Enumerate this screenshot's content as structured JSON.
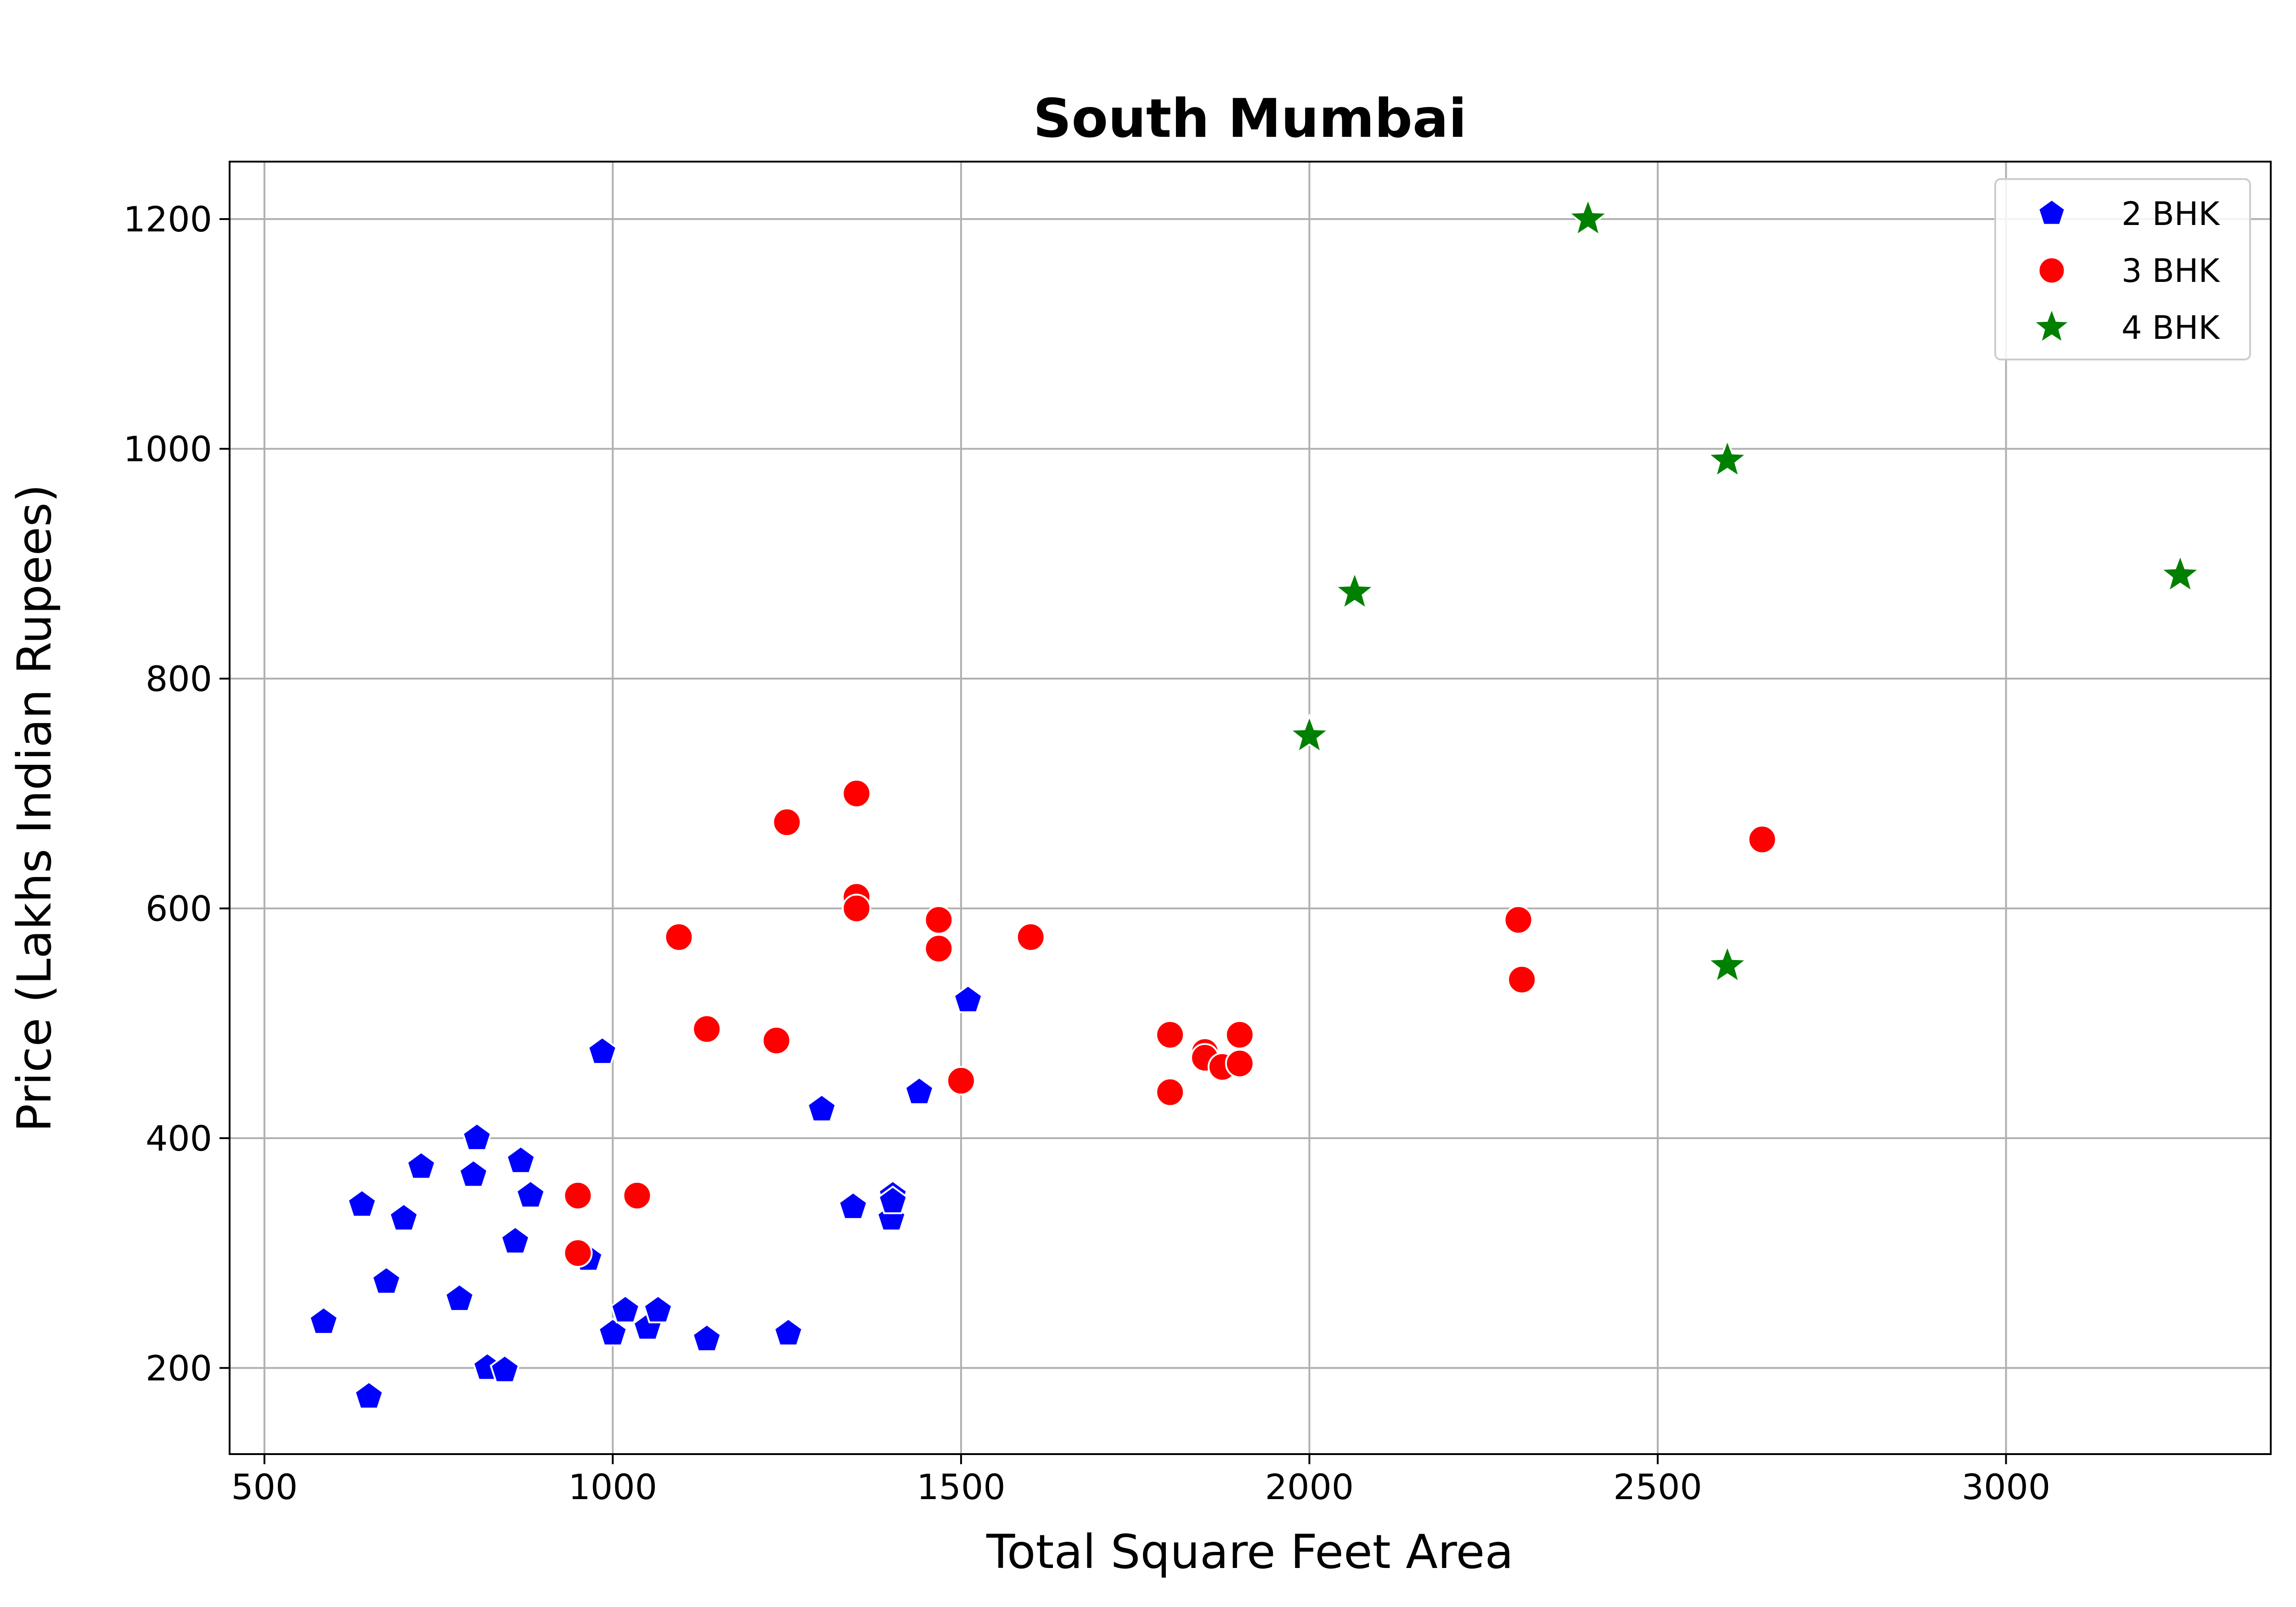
{
  "chart_data": {
    "type": "scatter",
    "title": "South Mumbai",
    "xlabel": "Total Square Feet Area",
    "ylabel": "Price (Lakhs Indian Rupees)",
    "xlim": [
      450,
      3380
    ],
    "ylim": [
      125,
      1250
    ],
    "xticks": [
      500,
      1000,
      1500,
      2000,
      2500,
      3000
    ],
    "yticks": [
      200,
      400,
      600,
      800,
      1000,
      1200
    ],
    "grid": true,
    "legend_position": "top-right",
    "series": [
      {
        "name": "2 BHK",
        "marker": "pentagon",
        "color": "#0000ff",
        "points": [
          [
            585,
            240
          ],
          [
            640,
            342
          ],
          [
            650,
            175
          ],
          [
            675,
            275
          ],
          [
            700,
            330
          ],
          [
            725,
            375
          ],
          [
            780,
            260
          ],
          [
            800,
            368
          ],
          [
            805,
            400
          ],
          [
            820,
            200
          ],
          [
            845,
            198
          ],
          [
            860,
            310
          ],
          [
            868,
            380
          ],
          [
            882,
            350
          ],
          [
            965,
            295
          ],
          [
            985,
            475
          ],
          [
            1000,
            230
          ],
          [
            1018,
            250
          ],
          [
            1050,
            235
          ],
          [
            1065,
            250
          ],
          [
            1135,
            225
          ],
          [
            1252,
            230
          ],
          [
            1300,
            425
          ],
          [
            1345,
            340
          ],
          [
            1400,
            330
          ],
          [
            1402,
            350
          ],
          [
            1402,
            345
          ],
          [
            1440,
            440
          ],
          [
            1510,
            520
          ]
        ]
      },
      {
        "name": "3 BHK",
        "marker": "circle",
        "color": "#ff0000",
        "points": [
          [
            950,
            350
          ],
          [
            950,
            300
          ],
          [
            1035,
            350
          ],
          [
            1095,
            575
          ],
          [
            1135,
            495
          ],
          [
            1235,
            485
          ],
          [
            1250,
            675
          ],
          [
            1350,
            700
          ],
          [
            1350,
            610
          ],
          [
            1350,
            600
          ],
          [
            1468,
            590
          ],
          [
            1468,
            565
          ],
          [
            1500,
            450
          ],
          [
            1600,
            575
          ],
          [
            1800,
            490
          ],
          [
            1800,
            440
          ],
          [
            1850,
            475
          ],
          [
            1850,
            470
          ],
          [
            1875,
            462
          ],
          [
            1900,
            490
          ],
          [
            1900,
            465
          ],
          [
            2300,
            590
          ],
          [
            2305,
            538
          ],
          [
            2650,
            660
          ]
        ]
      },
      {
        "name": "4 BHK",
        "marker": "star",
        "color": "#008000",
        "points": [
          [
            2000,
            750
          ],
          [
            2065,
            875
          ],
          [
            2400,
            1200
          ],
          [
            2600,
            990
          ],
          [
            2600,
            550
          ],
          [
            3250,
            890
          ]
        ]
      }
    ]
  }
}
